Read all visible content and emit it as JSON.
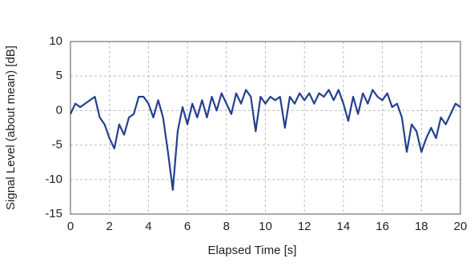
{
  "chart_data": {
    "type": "line",
    "xlabel": "Elapsed Time [s]",
    "ylabel": "Signal Level (about mean) [dB]",
    "x": [
      0,
      0.25,
      0.5,
      0.75,
      1,
      1.25,
      1.5,
      1.75,
      2,
      2.25,
      2.5,
      2.75,
      3,
      3.25,
      3.5,
      3.75,
      4,
      4.25,
      4.5,
      4.75,
      5,
      5.25,
      5.5,
      5.75,
      6,
      6.25,
      6.5,
      6.75,
      7,
      7.25,
      7.5,
      7.75,
      8,
      8.25,
      8.5,
      8.75,
      9,
      9.25,
      9.5,
      9.75,
      10,
      10.25,
      10.5,
      10.75,
      11,
      11.25,
      11.5,
      11.75,
      12,
      12.25,
      12.5,
      12.75,
      13,
      13.25,
      13.5,
      13.75,
      14,
      14.25,
      14.5,
      14.75,
      15,
      15.25,
      15.5,
      15.75,
      16,
      16.25,
      16.5,
      16.75,
      17,
      17.25,
      17.5,
      17.75,
      18,
      18.25,
      18.5,
      18.75,
      19,
      19.25,
      19.5,
      19.75,
      20
    ],
    "values": [
      -0.5,
      1,
      0.5,
      1,
      1.5,
      2,
      -1,
      -2,
      -4,
      -5.5,
      -2,
      -3.5,
      -1,
      -0.5,
      2,
      2,
      1,
      -1,
      1.5,
      -1,
      -6,
      -11.5,
      -3,
      0.5,
      -2,
      1,
      -1,
      1.5,
      -1,
      2,
      0,
      2.5,
      1,
      -0.5,
      2.5,
      1,
      3,
      2,
      -3,
      2,
      1,
      2,
      1.5,
      2,
      -2.5,
      2,
      1,
      2.5,
      1.5,
      2.5,
      1,
      2.5,
      2,
      3,
      1.5,
      3,
      1,
      -1.5,
      2,
      -0.5,
      2.5,
      1,
      3,
      2,
      1.5,
      2.5,
      0.5,
      1,
      -1,
      -6,
      -2,
      -3,
      -6,
      -4,
      -2.5,
      -4,
      -1,
      -2,
      -0.5,
      1,
      0.5
    ],
    "color": "#24408e",
    "xlim": [
      0,
      20
    ],
    "xticks": [
      0,
      2,
      4,
      6,
      8,
      10,
      12,
      14,
      16,
      18,
      20
    ],
    "ylim": [
      -15,
      10
    ],
    "yticks": [
      -15,
      -10,
      -5,
      0,
      5,
      10
    ],
    "grid": true
  }
}
